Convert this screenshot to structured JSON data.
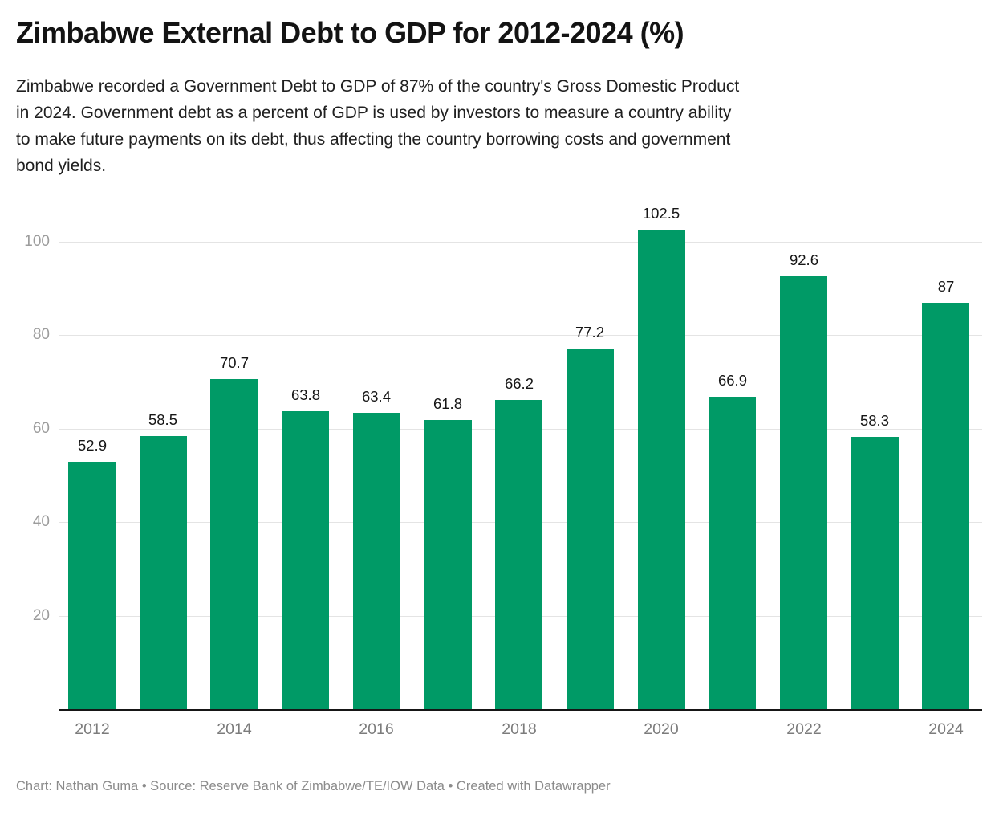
{
  "title": "Zimbabwe External Debt to GDP for 2012-2024 (%)",
  "description_lines": [
    "Zimbabwe recorded a Government Debt to GDP of 87% of the country's Gross Domestic Product",
    "in 2024. Government debt as a percent of GDP is used by investors to measure a country ability",
    "to make future payments on its debt, thus affecting the country borrowing costs and government",
    "bond yields."
  ],
  "credit": "Chart: Nathan Guma • Source: Reserve Bank of Zimbabwe/TE/IOW Data • Created with Datawrapper",
  "colors": {
    "bar": "#009A66",
    "gridline": "#e4e4e4",
    "axis_line": "#161616",
    "y_tick_label": "#9c9c9c",
    "x_tick_label": "#7c7c7c",
    "value_label": "#161616"
  },
  "chart_data": {
    "type": "bar",
    "title": "Zimbabwe External Debt to GDP for 2012-2024 (%)",
    "xlabel": "",
    "ylabel": "",
    "categories": [
      "2012",
      "2013",
      "2014",
      "2015",
      "2016",
      "2017",
      "2018",
      "2019",
      "2020",
      "2021",
      "2022",
      "2023",
      "2024"
    ],
    "values": [
      52.9,
      58.5,
      70.7,
      63.8,
      63.4,
      61.8,
      66.2,
      77.2,
      102.5,
      66.9,
      92.6,
      58.3,
      87
    ],
    "value_labels": [
      "52.9",
      "58.5",
      "70.7",
      "63.8",
      "63.4",
      "61.8",
      "66.2",
      "77.2",
      "102.5",
      "66.9",
      "92.6",
      "58.3",
      "87"
    ],
    "x_tick_labels": [
      "2012",
      "2014",
      "2016",
      "2018",
      "2020",
      "2022",
      "2024"
    ],
    "x_tick_every": 2,
    "y_ticks": [
      20,
      40,
      60,
      80,
      100
    ],
    "ylim": [
      0,
      105
    ],
    "grid": "horizontal",
    "legend": "none",
    "bar_color": "#009A66"
  }
}
